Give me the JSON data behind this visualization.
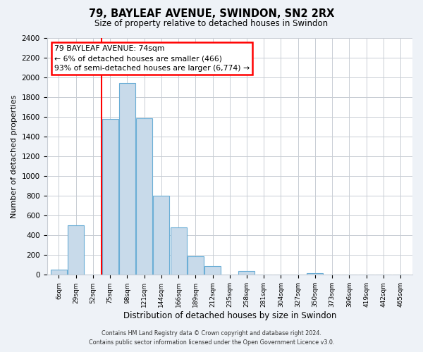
{
  "title": "79, BAYLEAF AVENUE, SWINDON, SN2 2RX",
  "subtitle": "Size of property relative to detached houses in Swindon",
  "xlabel": "Distribution of detached houses by size in Swindon",
  "ylabel": "Number of detached properties",
  "bar_color": "#c8daea",
  "bar_edge_color": "#6baed6",
  "bin_labels": [
    "6sqm",
    "29sqm",
    "52sqm",
    "75sqm",
    "98sqm",
    "121sqm",
    "144sqm",
    "166sqm",
    "189sqm",
    "212sqm",
    "235sqm",
    "258sqm",
    "281sqm",
    "304sqm",
    "327sqm",
    "350sqm",
    "373sqm",
    "396sqm",
    "419sqm",
    "442sqm",
    "465sqm"
  ],
  "bar_heights": [
    50,
    500,
    0,
    1580,
    1940,
    1590,
    800,
    480,
    185,
    90,
    0,
    35,
    0,
    0,
    0,
    20,
    0,
    0,
    0,
    0,
    0
  ],
  "ylim": [
    0,
    2400
  ],
  "yticks": [
    0,
    200,
    400,
    600,
    800,
    1000,
    1200,
    1400,
    1600,
    1800,
    2000,
    2200,
    2400
  ],
  "red_line_x": 3,
  "annotation_line1": "79 BAYLEAF AVENUE: 74sqm",
  "annotation_line2": "← 6% of detached houses are smaller (466)",
  "annotation_line3": "93% of semi-detached houses are larger (6,774) →",
  "footer_line1": "Contains HM Land Registry data © Crown copyright and database right 2024.",
  "footer_line2": "Contains public sector information licensed under the Open Government Licence v3.0.",
  "bg_color": "#eef2f7",
  "plot_bg_color": "#ffffff",
  "grid_color": "#c8cdd4"
}
